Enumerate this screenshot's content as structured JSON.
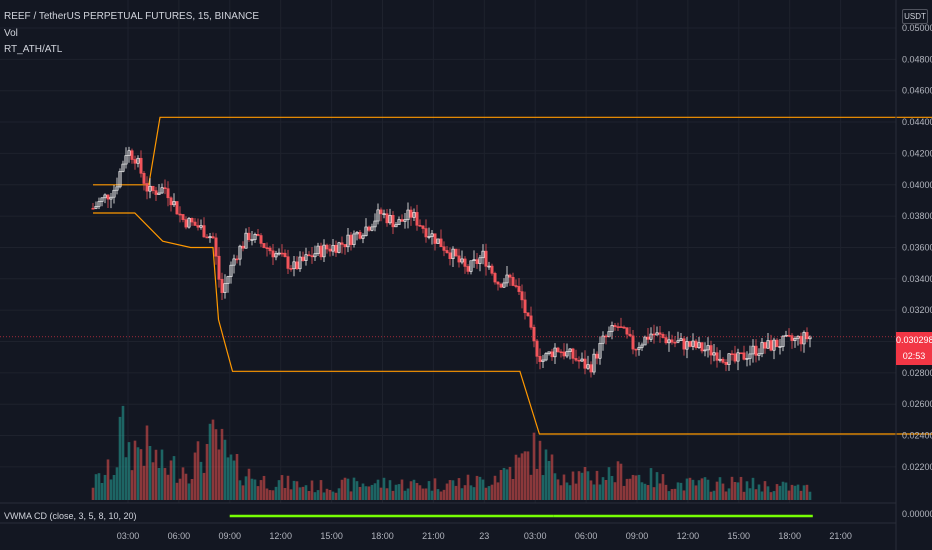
{
  "header": {
    "symbol_line": "REEF / TetherUS PERPETUAL FUTURES, 15, BINANCE",
    "indicator_vol": "Vol",
    "indicator_ath": "RT_ATH/ATL"
  },
  "currency": "USDT",
  "last_price": {
    "value": "0.030298",
    "countdown": "02:53"
  },
  "vwma_label": "VWMA CD (close, 3, 5, 8, 10, 20)",
  "colors": {
    "background": "#131722",
    "up": "#f7f7f7",
    "down": "#f2545b",
    "vol_up": "#26a69a",
    "vol_down": "#ef5350",
    "ath_atl_line": "#ff9800",
    "vwma": "#76ff03",
    "grid": "#1e222d"
  },
  "chart_data": {
    "type": "candlestick",
    "price_ticks": [
      "0.050000",
      "0.048000",
      "0.046000",
      "0.044000",
      "0.042000",
      "0.040000",
      "0.038000",
      "0.036000",
      "0.034000",
      "0.032000",
      "0.030000",
      "0.028000",
      "0.026000",
      "0.024000",
      "0.022000"
    ],
    "oscillator_tick": "0.000000",
    "time_ticks": [
      "03:00",
      "06:00",
      "09:00",
      "12:00",
      "15:00",
      "18:00",
      "21:00",
      "23",
      "03:00",
      "06:00",
      "09:00",
      "12:00",
      "15:00",
      "18:00",
      "21:00"
    ],
    "ylim": [
      0.0214,
      0.0505
    ],
    "ath_line": [
      {
        "t": 0.0,
        "v": 0.04
      },
      {
        "t": 2.0,
        "v": 0.04
      },
      {
        "t": 2.4,
        "v": 0.0443
      },
      {
        "t": 31.5,
        "v": 0.0443
      }
    ],
    "atl_line": [
      {
        "t": 0.0,
        "v": 0.0382
      },
      {
        "t": 1.5,
        "v": 0.0382
      },
      {
        "t": 2.5,
        "v": 0.0364
      },
      {
        "t": 3.5,
        "v": 0.036
      },
      {
        "t": 4.3,
        "v": 0.036
      },
      {
        "t": 4.5,
        "v": 0.0314
      },
      {
        "t": 5.0,
        "v": 0.0281
      },
      {
        "t": 15.3,
        "v": 0.0281
      },
      {
        "t": 16.0,
        "v": 0.0241
      },
      {
        "t": 31.5,
        "v": 0.0241
      }
    ],
    "price_path": [
      {
        "t": 0.0,
        "v": 0.0385
      },
      {
        "t": 0.8,
        "v": 0.0398
      },
      {
        "t": 1.2,
        "v": 0.0422
      },
      {
        "t": 1.5,
        "v": 0.0418
      },
      {
        "t": 2.0,
        "v": 0.0395
      },
      {
        "t": 2.6,
        "v": 0.0398
      },
      {
        "t": 3.2,
        "v": 0.0378
      },
      {
        "t": 3.8,
        "v": 0.0373
      },
      {
        "t": 4.3,
        "v": 0.0366
      },
      {
        "t": 4.6,
        "v": 0.033
      },
      {
        "t": 5.1,
        "v": 0.0355
      },
      {
        "t": 5.6,
        "v": 0.0368
      },
      {
        "t": 6.4,
        "v": 0.0358
      },
      {
        "t": 7.2,
        "v": 0.0347
      },
      {
        "t": 8.0,
        "v": 0.0357
      },
      {
        "t": 9.0,
        "v": 0.0363
      },
      {
        "t": 9.8,
        "v": 0.0373
      },
      {
        "t": 10.3,
        "v": 0.0382
      },
      {
        "t": 10.9,
        "v": 0.0375
      },
      {
        "t": 11.4,
        "v": 0.0381
      },
      {
        "t": 12.0,
        "v": 0.037
      },
      {
        "t": 12.8,
        "v": 0.0357
      },
      {
        "t": 13.4,
        "v": 0.0345
      },
      {
        "t": 14.0,
        "v": 0.0355
      },
      {
        "t": 14.5,
        "v": 0.0338
      },
      {
        "t": 15.0,
        "v": 0.034
      },
      {
        "t": 15.4,
        "v": 0.0325
      },
      {
        "t": 15.8,
        "v": 0.0298
      },
      {
        "t": 16.1,
        "v": 0.0288
      },
      {
        "t": 16.6,
        "v": 0.0296
      },
      {
        "t": 17.2,
        "v": 0.029
      },
      {
        "t": 17.8,
        "v": 0.0283
      },
      {
        "t": 18.3,
        "v": 0.0301
      },
      {
        "t": 18.8,
        "v": 0.031
      },
      {
        "t": 19.4,
        "v": 0.0296
      },
      {
        "t": 20.0,
        "v": 0.0305
      },
      {
        "t": 20.8,
        "v": 0.03
      },
      {
        "t": 21.5,
        "v": 0.0297
      },
      {
        "t": 22.3,
        "v": 0.0293
      },
      {
        "t": 23.0,
        "v": 0.0287
      },
      {
        "t": 23.6,
        "v": 0.0294
      },
      {
        "t": 24.4,
        "v": 0.0298
      },
      {
        "t": 25.2,
        "v": 0.0301
      },
      {
        "t": 25.7,
        "v": 0.0303
      }
    ],
    "volume_profile": [
      {
        "t": 0.0,
        "v": 0.15
      },
      {
        "t": 0.8,
        "v": 0.3
      },
      {
        "t": 1.0,
        "v": 0.65
      },
      {
        "t": 1.3,
        "v": 0.45
      },
      {
        "t": 1.8,
        "v": 0.5
      },
      {
        "t": 2.5,
        "v": 0.3
      },
      {
        "t": 3.5,
        "v": 0.3
      },
      {
        "t": 4.4,
        "v": 0.55
      },
      {
        "t": 5.0,
        "v": 0.3
      },
      {
        "t": 6.0,
        "v": 0.18
      },
      {
        "t": 8.0,
        "v": 0.12
      },
      {
        "t": 10.0,
        "v": 0.15
      },
      {
        "t": 12.0,
        "v": 0.14
      },
      {
        "t": 14.0,
        "v": 0.17
      },
      {
        "t": 15.4,
        "v": 0.35
      },
      {
        "t": 15.9,
        "v": 0.45
      },
      {
        "t": 16.4,
        "v": 0.3
      },
      {
        "t": 17.5,
        "v": 0.2
      },
      {
        "t": 19.0,
        "v": 0.25
      },
      {
        "t": 21.0,
        "v": 0.14
      },
      {
        "t": 23.0,
        "v": 0.15
      },
      {
        "t": 25.8,
        "v": 0.1
      }
    ],
    "vwma_segments": [
      {
        "from": 4.9,
        "to": 16.5,
        "color": "#76ff03"
      },
      {
        "from": 16.5,
        "to": 25.8,
        "color": "#76ff03"
      }
    ]
  }
}
